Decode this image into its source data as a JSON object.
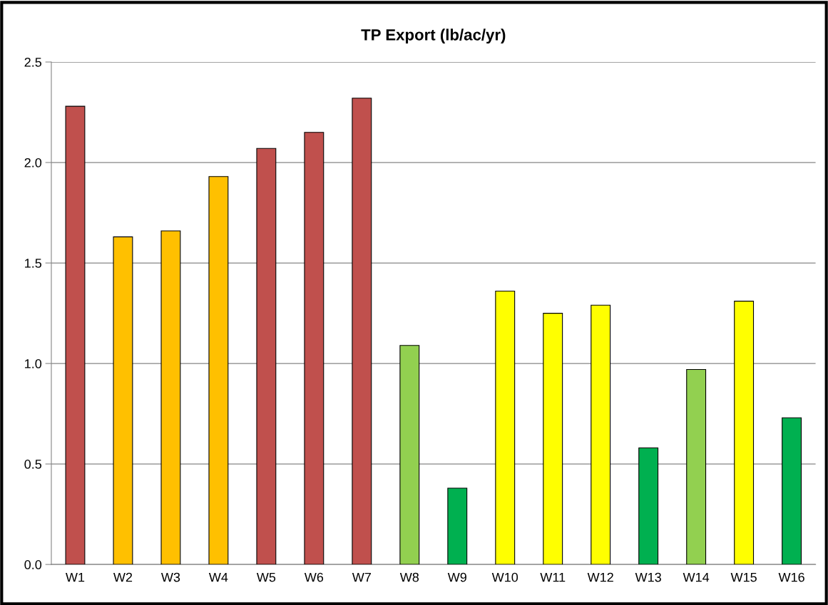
{
  "chart_data": {
    "type": "bar",
    "title": "TP Export (lb/ac/yr)",
    "categories": [
      "W1",
      "W2",
      "W3",
      "W4",
      "W5",
      "W6",
      "W7",
      "W8",
      "W9",
      "W10",
      "W11",
      "W12",
      "W13",
      "W14",
      "W15",
      "W16"
    ],
    "values": [
      2.28,
      1.63,
      1.66,
      1.93,
      2.07,
      2.15,
      2.32,
      1.09,
      0.38,
      1.36,
      1.25,
      1.29,
      0.58,
      0.97,
      1.31,
      0.73
    ],
    "colors": [
      "#c0504d",
      "#ffc000",
      "#ffc000",
      "#ffc000",
      "#c0504d",
      "#c0504d",
      "#c0504d",
      "#92d050",
      "#00b050",
      "#ffff00",
      "#ffff00",
      "#ffff00",
      "#00b050",
      "#92d050",
      "#ffff00",
      "#00b050"
    ],
    "ylim": [
      0,
      2.5
    ],
    "yticks": [
      {
        "value": 0,
        "label": "0.0"
      },
      {
        "value": 0.5,
        "label": "0.5"
      },
      {
        "value": 1,
        "label": "1.0"
      },
      {
        "value": 1.5,
        "label": "1.5"
      },
      {
        "value": 2,
        "label": "2.0"
      },
      {
        "value": 2.5,
        "label": "2.5"
      }
    ],
    "grid": "y"
  }
}
